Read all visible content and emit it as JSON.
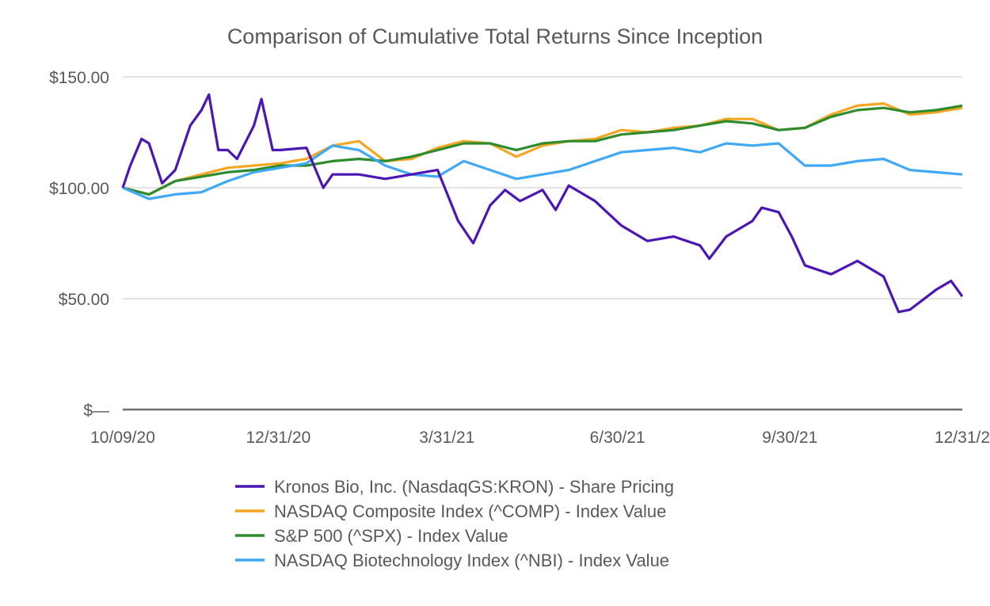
{
  "chart_data": {
    "type": "line",
    "title": "Comparison of Cumulative Total Returns Since Inception",
    "xlabel": "",
    "ylabel": "",
    "ylim": [
      0,
      150
    ],
    "xlim": [
      "2020-10-09",
      "2021-12-31"
    ],
    "yticks": [
      {
        "value": 0,
        "label": "$—"
      },
      {
        "value": 50,
        "label": "$50.00"
      },
      {
        "value": 100,
        "label": "$100.00"
      },
      {
        "value": 150,
        "label": "$150.00"
      }
    ],
    "xticks": [
      {
        "date": "2020-10-09",
        "label": "10/09/20"
      },
      {
        "date": "2020-12-31",
        "label": "12/31/20"
      },
      {
        "date": "2021-03-31",
        "label": "3/31/21"
      },
      {
        "date": "2021-06-30",
        "label": "6/30/21"
      },
      {
        "date": "2021-09-30",
        "label": "9/30/21"
      },
      {
        "date": "2021-12-31",
        "label": "12/31/2"
      }
    ],
    "grid": true,
    "legend_position": "bottom",
    "series": [
      {
        "name": "Kronos Bio, Inc. (NasdaqGS:KRON) - Share Pricing",
        "color": "#4b16b3",
        "x": [
          "2020-10-09",
          "2020-10-13",
          "2020-10-19",
          "2020-10-23",
          "2020-10-30",
          "2020-11-06",
          "2020-11-14",
          "2020-11-20",
          "2020-11-24",
          "2020-11-29",
          "2020-12-04",
          "2020-12-09",
          "2020-12-18",
          "2020-12-22",
          "2020-12-28",
          "2021-01-01",
          "2021-01-15",
          "2021-01-24",
          "2021-01-29",
          "2021-02-12",
          "2021-02-26",
          "2021-03-12",
          "2021-03-26",
          "2021-04-06",
          "2021-04-14",
          "2021-04-23",
          "2021-05-01",
          "2021-05-09",
          "2021-05-21",
          "2021-05-28",
          "2021-06-04",
          "2021-06-18",
          "2021-07-02",
          "2021-07-16",
          "2021-07-30",
          "2021-08-13",
          "2021-08-18",
          "2021-08-27",
          "2021-09-10",
          "2021-09-15",
          "2021-09-24",
          "2021-10-01",
          "2021-10-08",
          "2021-10-22",
          "2021-11-05",
          "2021-11-19",
          "2021-11-27",
          "2021-12-03",
          "2021-12-17",
          "2021-12-25",
          "2021-12-31"
        ],
        "values": [
          100,
          110,
          122,
          120,
          102,
          108,
          128,
          135,
          142,
          117,
          117,
          113,
          128,
          140,
          117,
          117,
          118,
          100,
          106,
          106,
          104,
          106,
          108,
          85,
          75,
          92,
          99,
          94,
          99,
          90,
          101,
          94,
          83,
          76,
          78,
          74,
          68,
          78,
          85,
          91,
          89,
          78,
          65,
          61,
          67,
          60,
          44,
          45,
          54,
          58,
          51
        ]
      },
      {
        "name": "NASDAQ Composite Index (^COMP) - Index Value",
        "color": "#f5a623",
        "x": [
          "2020-10-09",
          "2020-10-23",
          "2020-11-06",
          "2020-11-20",
          "2020-12-04",
          "2020-12-18",
          "2021-01-01",
          "2021-01-15",
          "2021-01-29",
          "2021-02-12",
          "2021-02-26",
          "2021-03-12",
          "2021-03-26",
          "2021-04-09",
          "2021-04-23",
          "2021-05-07",
          "2021-05-21",
          "2021-06-04",
          "2021-06-18",
          "2021-07-02",
          "2021-07-16",
          "2021-07-30",
          "2021-08-13",
          "2021-08-27",
          "2021-09-10",
          "2021-09-24",
          "2021-10-08",
          "2021-10-22",
          "2021-11-05",
          "2021-11-19",
          "2021-12-03",
          "2021-12-17",
          "2021-12-31"
        ],
        "values": [
          100,
          97,
          103,
          106,
          109,
          110,
          111,
          113,
          119,
          121,
          112,
          113,
          118,
          121,
          120,
          114,
          119,
          121,
          122,
          126,
          125,
          127,
          128,
          131,
          131,
          126,
          127,
          133,
          137,
          138,
          133,
          134,
          136
        ]
      },
      {
        "name": "S&P 500 (^SPX) - Index Value",
        "color": "#2e8b2e",
        "x": [
          "2020-10-09",
          "2020-10-23",
          "2020-11-06",
          "2020-11-20",
          "2020-12-04",
          "2020-12-18",
          "2021-01-01",
          "2021-01-15",
          "2021-01-29",
          "2021-02-12",
          "2021-02-26",
          "2021-03-12",
          "2021-03-26",
          "2021-04-09",
          "2021-04-23",
          "2021-05-07",
          "2021-05-21",
          "2021-06-04",
          "2021-06-18",
          "2021-07-02",
          "2021-07-16",
          "2021-07-30",
          "2021-08-13",
          "2021-08-27",
          "2021-09-10",
          "2021-09-24",
          "2021-10-08",
          "2021-10-22",
          "2021-11-05",
          "2021-11-19",
          "2021-12-03",
          "2021-12-17",
          "2021-12-31"
        ],
        "values": [
          100,
          97,
          103,
          105,
          107,
          108,
          110,
          110,
          112,
          113,
          112,
          114,
          117,
          120,
          120,
          117,
          120,
          121,
          121,
          124,
          125,
          126,
          128,
          130,
          129,
          126,
          127,
          132,
          135,
          136,
          134,
          135,
          137
        ]
      },
      {
        "name": "NASDAQ Biotechnology Index (^NBI) - Index Value",
        "color": "#3fa9f5",
        "x": [
          "2020-10-09",
          "2020-10-23",
          "2020-11-06",
          "2020-11-20",
          "2020-12-04",
          "2020-12-18",
          "2021-01-01",
          "2021-01-15",
          "2021-01-29",
          "2021-02-12",
          "2021-02-26",
          "2021-03-12",
          "2021-03-26",
          "2021-04-09",
          "2021-04-23",
          "2021-05-07",
          "2021-05-21",
          "2021-06-04",
          "2021-06-18",
          "2021-07-02",
          "2021-07-16",
          "2021-07-30",
          "2021-08-13",
          "2021-08-27",
          "2021-09-10",
          "2021-09-24",
          "2021-10-08",
          "2021-10-22",
          "2021-11-05",
          "2021-11-19",
          "2021-12-03",
          "2021-12-17",
          "2021-12-31"
        ],
        "values": [
          100,
          95,
          97,
          98,
          103,
          107,
          109,
          111,
          119,
          117,
          110,
          106,
          105,
          112,
          108,
          104,
          106,
          108,
          112,
          116,
          117,
          118,
          116,
          120,
          119,
          120,
          110,
          110,
          112,
          113,
          108,
          107,
          106
        ]
      }
    ]
  }
}
